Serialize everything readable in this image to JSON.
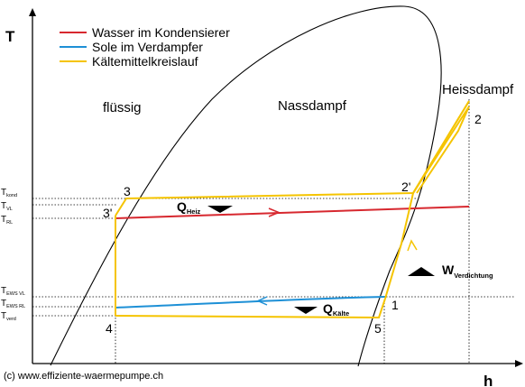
{
  "axes": {
    "y_label": "T",
    "x_label": "h"
  },
  "regions": {
    "liquid": "flüssig",
    "wet": "Nassdampf",
    "superheated": "Heissdampf"
  },
  "legend": [
    {
      "label": "Wasser im Kondensierer",
      "color": "#d7282f"
    },
    {
      "label": "Sole im Verdampfer",
      "color": "#1e90d6"
    },
    {
      "label": "Kältemittelkreislauf",
      "color": "#f5c400"
    }
  ],
  "temperature_ticks": [
    {
      "main": "T",
      "sub": "kond"
    },
    {
      "main": "T",
      "sub": "VL"
    },
    {
      "main": "T",
      "sub": "RL"
    },
    {
      "main": "T",
      "sub": "EWS VL"
    },
    {
      "main": "T",
      "sub": "EWS RL"
    },
    {
      "main": "T",
      "sub": "verd"
    }
  ],
  "state_points": [
    "1",
    "2",
    "2'",
    "3",
    "3'",
    "4",
    "5"
  ],
  "heat_labels": {
    "q_heiz": {
      "main": "Q",
      "sub": "Heiz"
    },
    "q_kaelte": {
      "main": "Q",
      "sub": "Kälte"
    },
    "w_verdichtung": {
      "main": "W",
      "sub": "Verdichtung"
    }
  },
  "copyright": "(c) www.effiziente-waermepumpe.ch",
  "colors": {
    "axis": "#000000",
    "dome": "#000000",
    "water": "#d7282f",
    "brine": "#1e90d6",
    "refrigerant": "#f5c400",
    "arrow": "#000000"
  }
}
